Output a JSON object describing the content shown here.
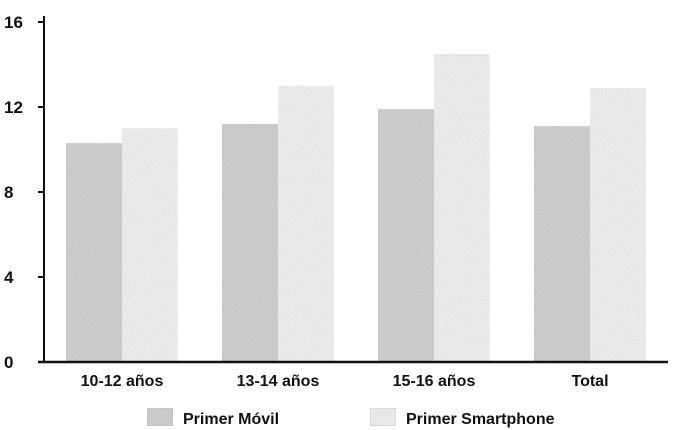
{
  "chart_data": {
    "type": "bar",
    "title": "",
    "xlabel": "",
    "ylabel": "",
    "categories": [
      "10-12 años",
      "13-14 años",
      "15-16 años",
      "Total"
    ],
    "series": [
      {
        "name": "Primer Móvil",
        "values": [
          10.3,
          11.2,
          11.9,
          11.1
        ]
      },
      {
        "name": "Primer Smartphone",
        "values": [
          11.0,
          13.0,
          14.5,
          12.9
        ]
      }
    ],
    "ylim": [
      0,
      16
    ],
    "yticks": [
      0,
      4,
      8,
      12,
      16
    ],
    "legend_position": "bottom",
    "grid": false,
    "colors": {
      "series": [
        "#d2d2d2",
        "#f2f2f2"
      ],
      "axis": "#111111"
    }
  }
}
